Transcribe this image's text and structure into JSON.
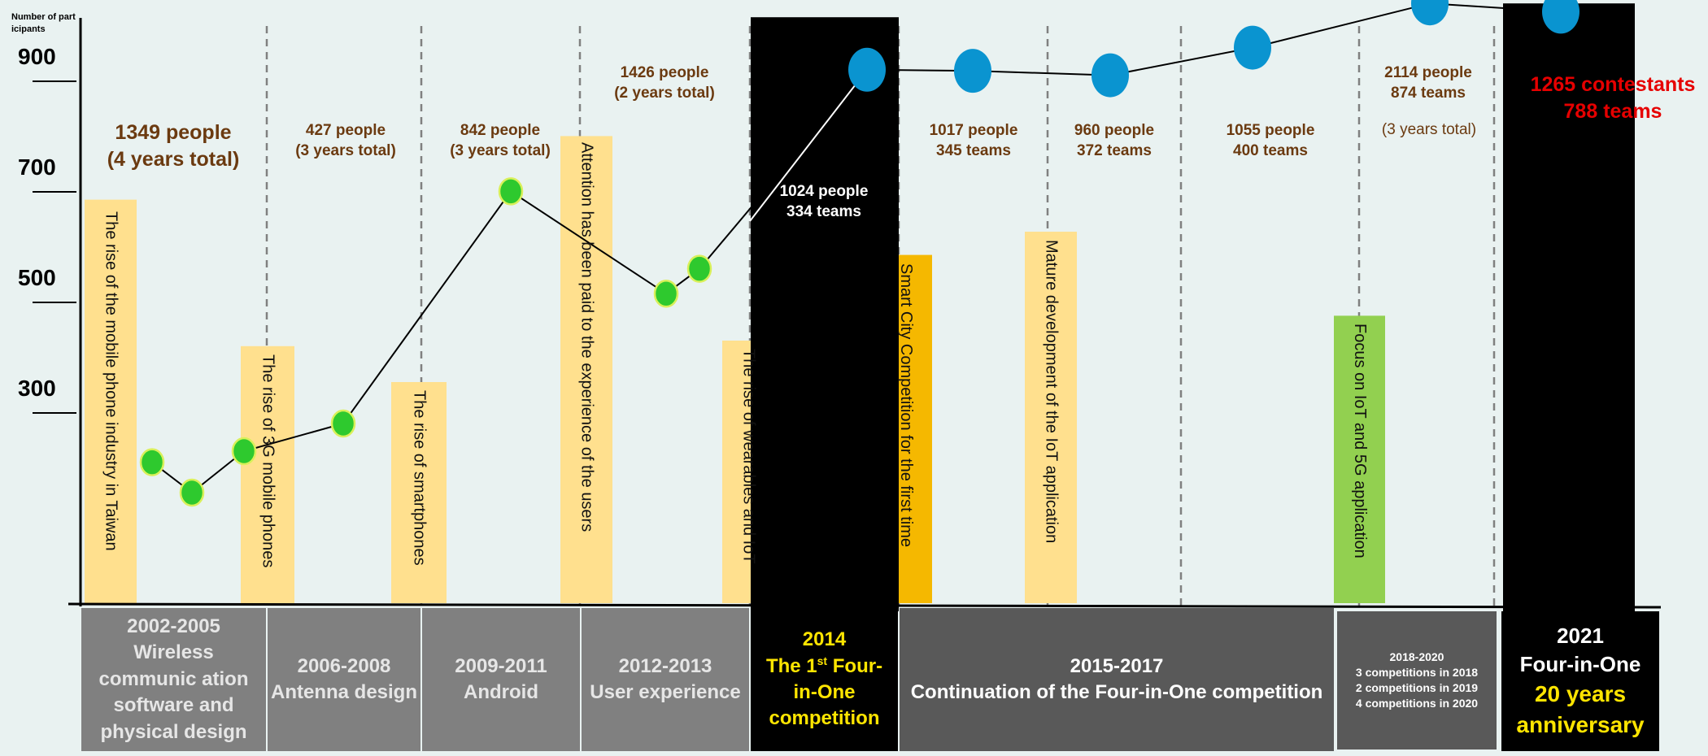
{
  "chart_data": {
    "type": "bar",
    "ylabel": "Number of participants",
    "ylim": [
      0,
      1100
    ],
    "yticks": [
      300,
      500,
      700,
      900
    ],
    "bars": [
      {
        "value": 730,
        "label": "The rise of the mobile phone industry in Taiwan",
        "color": "#ffe08e"
      },
      {
        "value": 465,
        "label": "The rise of 3G mobile phones",
        "color": "#ffe08e"
      },
      {
        "value": 400,
        "label": "The rise of smartphones",
        "color": "#ffe08e"
      },
      {
        "value": 845,
        "label": "Attention has been paid to the experience of the users",
        "color": "#ffe08e"
      },
      {
        "value": 475,
        "label": "The rise of wearables and IoT",
        "color": "#ffe08e"
      },
      {
        "value": 630,
        "label": "Smart City Competition for the first time",
        "color": "#f5b800"
      },
      {
        "value": 672,
        "label": "Mature development of the IoT application",
        "color": "#ffe08e"
      },
      {
        "value": 520,
        "label": "Focus on IoT and 5G application",
        "color": "#92d050"
      }
    ],
    "highlight_bars": [
      {
        "value": 1060,
        "label": "2014",
        "color": "#000000"
      },
      {
        "value": 1085,
        "label": "2021",
        "color": "#000000"
      }
    ],
    "trend_points": [
      {
        "value": 255,
        "color": "#2ec92e"
      },
      {
        "value": 200,
        "color": "#2ec92e"
      },
      {
        "value": 275,
        "color": "#2ec92e"
      },
      {
        "value": 325,
        "color": "#2ec92e"
      },
      {
        "value": 745,
        "color": "#2ec92e"
      },
      {
        "value": 560,
        "color": "#2ec92e"
      },
      {
        "value": 605,
        "color": "#2ec92e"
      },
      {
        "value": 965,
        "color": "#0a94d0"
      },
      {
        "value": 963,
        "color": "#0a94d0"
      },
      {
        "value": 955,
        "color": "#0a94d0"
      },
      {
        "value": 1005,
        "color": "#0a94d0"
      },
      {
        "value": 1085,
        "color": "#0a94d0"
      },
      {
        "value": 1070,
        "color": "#0a94d0"
      }
    ],
    "annotations": [
      {
        "l1": "1349 people",
        "l2": "(4 years total)"
      },
      {
        "l1": "427 people",
        "l2": "(3 years total)"
      },
      {
        "l1": "842 people",
        "l2": "(3 years total)"
      },
      {
        "l1": "1426 people",
        "l2": "(2 years total)"
      },
      {
        "l1": "1024 people",
        "l2": "334 teams"
      },
      {
        "l1": "1017 people",
        "l2": "345 teams"
      },
      {
        "l1": "960 people",
        "l2": "372 teams"
      },
      {
        "l1": "1055 people",
        "l2": "400 teams"
      },
      {
        "l1": "2114 people",
        "l2": "874 teams"
      },
      {
        "l1": "(3 years total)",
        "l2": ""
      },
      {
        "l1": "1265 contestants",
        "l2": "788 teams"
      }
    ],
    "categories": [
      {
        "years": "2002-2005",
        "desc": "Wireless communic ation software and physical design"
      },
      {
        "years": "2006-2008",
        "desc": "Antenna design"
      },
      {
        "years": "2009-2011",
        "desc": "Android"
      },
      {
        "years": "2012-2013",
        "desc": "User experience"
      },
      {
        "years": "2014",
        "desc1": "The 1",
        "sup": "st",
        "desc2": " Four-in-One competition"
      },
      {
        "years": "2015-2017",
        "desc": "Continuation of the Four-in-One competition"
      },
      {
        "years": "2018-2020",
        "d1": "3 competitions in 2018",
        "d2": "2 competitions in 2019",
        "d3": "4 competitions in 2020"
      },
      {
        "years": "2021",
        "desc": "Four-in-One",
        "desc2": "20 years anniversary"
      }
    ],
    "colors": {
      "pale": "#ffe08e",
      "orange": "#f5b800",
      "green_bar": "#92d050",
      "green_dot": "#2ec92e",
      "blue_dot": "#0a94d0",
      "red_text": "#e60000",
      "yellow_text": "#ffe500"
    }
  }
}
